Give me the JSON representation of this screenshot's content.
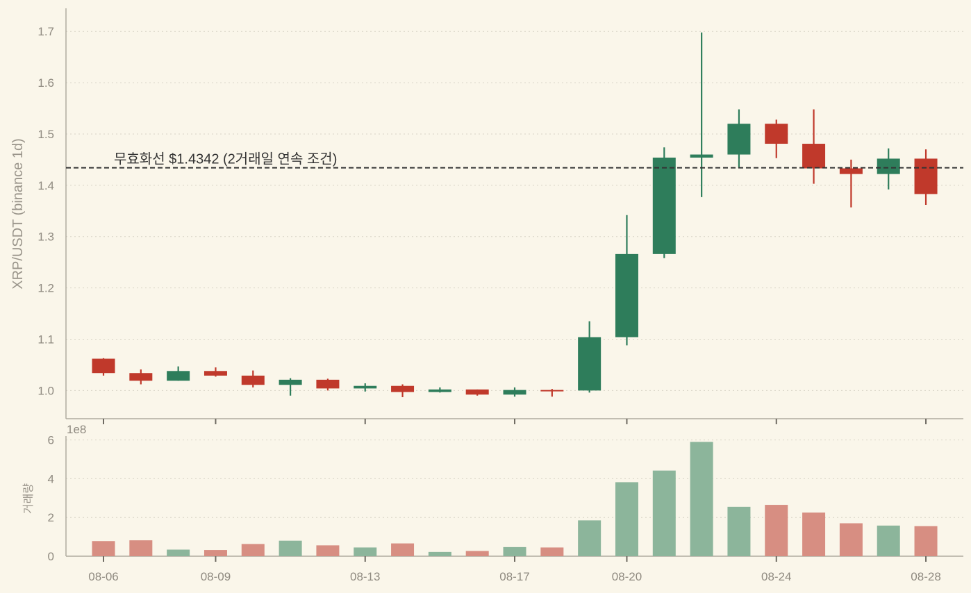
{
  "chart_data": {
    "type": "candlestick",
    "price_panel": {
      "ylabel": "XRP/USDT (binance 1d)",
      "ylim": [
        0.945,
        1.745
      ],
      "yticks": [
        "1.0",
        "1.1",
        "1.2",
        "1.3",
        "1.4",
        "1.5",
        "1.6",
        "1.7"
      ],
      "grid": true,
      "reference_line": {
        "value": 1.4342,
        "label": "무효화선 $1.4342 (2거래일 연속 조건)",
        "style": "dashed"
      }
    },
    "volume_panel": {
      "ylabel": "거래량",
      "scale_label": "1e8",
      "ylim": [
        0,
        6.2
      ],
      "yticks": [
        "0",
        "2",
        "4",
        "6"
      ],
      "grid": true
    },
    "x_tick_labels": [
      {
        "index": 0,
        "label": "08-06"
      },
      {
        "index": 3,
        "label": "08-09"
      },
      {
        "index": 7,
        "label": "08-13"
      },
      {
        "index": 11,
        "label": "08-17"
      },
      {
        "index": 14,
        "label": "08-20"
      },
      {
        "index": 18,
        "label": "08-24"
      },
      {
        "index": 22,
        "label": "08-28"
      }
    ],
    "colors": {
      "up": "#2e7d5b",
      "down": "#c0392b",
      "up_volume": "#8cb59b",
      "down_volume": "#d78e82",
      "reference_line": "#333333"
    },
    "candles": [
      {
        "open": 1.062,
        "high": 1.063,
        "low": 1.029,
        "close": 1.034,
        "volume": 0.78
      },
      {
        "open": 1.034,
        "high": 1.041,
        "low": 1.012,
        "close": 1.019,
        "volume": 0.82
      },
      {
        "open": 1.019,
        "high": 1.047,
        "low": 1.019,
        "close": 1.038,
        "volume": 0.34
      },
      {
        "open": 1.038,
        "high": 1.045,
        "low": 1.027,
        "close": 1.029,
        "volume": 0.32
      },
      {
        "open": 1.029,
        "high": 1.039,
        "low": 1.006,
        "close": 1.011,
        "volume": 0.63
      },
      {
        "open": 1.011,
        "high": 1.024,
        "low": 0.99,
        "close": 1.021,
        "volume": 0.8
      },
      {
        "open": 1.021,
        "high": 1.023,
        "low": 1.0,
        "close": 1.004,
        "volume": 0.56
      },
      {
        "open": 1.004,
        "high": 1.014,
        "low": 0.998,
        "close": 1.009,
        "volume": 0.45
      },
      {
        "open": 1.009,
        "high": 1.012,
        "low": 0.987,
        "close": 0.997,
        "volume": 0.66
      },
      {
        "open": 0.997,
        "high": 1.006,
        "low": 0.996,
        "close": 1.002,
        "volume": 0.22
      },
      {
        "open": 1.002,
        "high": 1.002,
        "low": 0.99,
        "close": 0.992,
        "volume": 0.27
      },
      {
        "open": 0.992,
        "high": 1.006,
        "low": 0.988,
        "close": 1.001,
        "volume": 0.47
      },
      {
        "open": 1.001,
        "high": 1.003,
        "low": 0.988,
        "close": 1.0,
        "volume": 0.45
      },
      {
        "open": 1.0,
        "high": 1.135,
        "low": 0.996,
        "close": 1.104,
        "volume": 1.85
      },
      {
        "open": 1.104,
        "high": 1.342,
        "low": 1.088,
        "close": 1.266,
        "volume": 3.82
      },
      {
        "open": 1.266,
        "high": 1.474,
        "low": 1.258,
        "close": 1.454,
        "volume": 4.42
      },
      {
        "open": 1.454,
        "high": 1.698,
        "low": 1.377,
        "close": 1.46,
        "volume": 5.9
      },
      {
        "open": 1.46,
        "high": 1.548,
        "low": 1.434,
        "close": 1.52,
        "volume": 2.55
      },
      {
        "open": 1.52,
        "high": 1.528,
        "low": 1.453,
        "close": 1.481,
        "volume": 2.65
      },
      {
        "open": 1.481,
        "high": 1.548,
        "low": 1.403,
        "close": 1.433,
        "volume": 2.25
      },
      {
        "open": 1.433,
        "high": 1.45,
        "low": 1.357,
        "close": 1.422,
        "volume": 1.7
      },
      {
        "open": 1.422,
        "high": 1.472,
        "low": 1.392,
        "close": 1.452,
        "volume": 1.58
      },
      {
        "open": 1.452,
        "high": 1.47,
        "low": 1.362,
        "close": 1.383,
        "volume": 1.55
      }
    ]
  }
}
